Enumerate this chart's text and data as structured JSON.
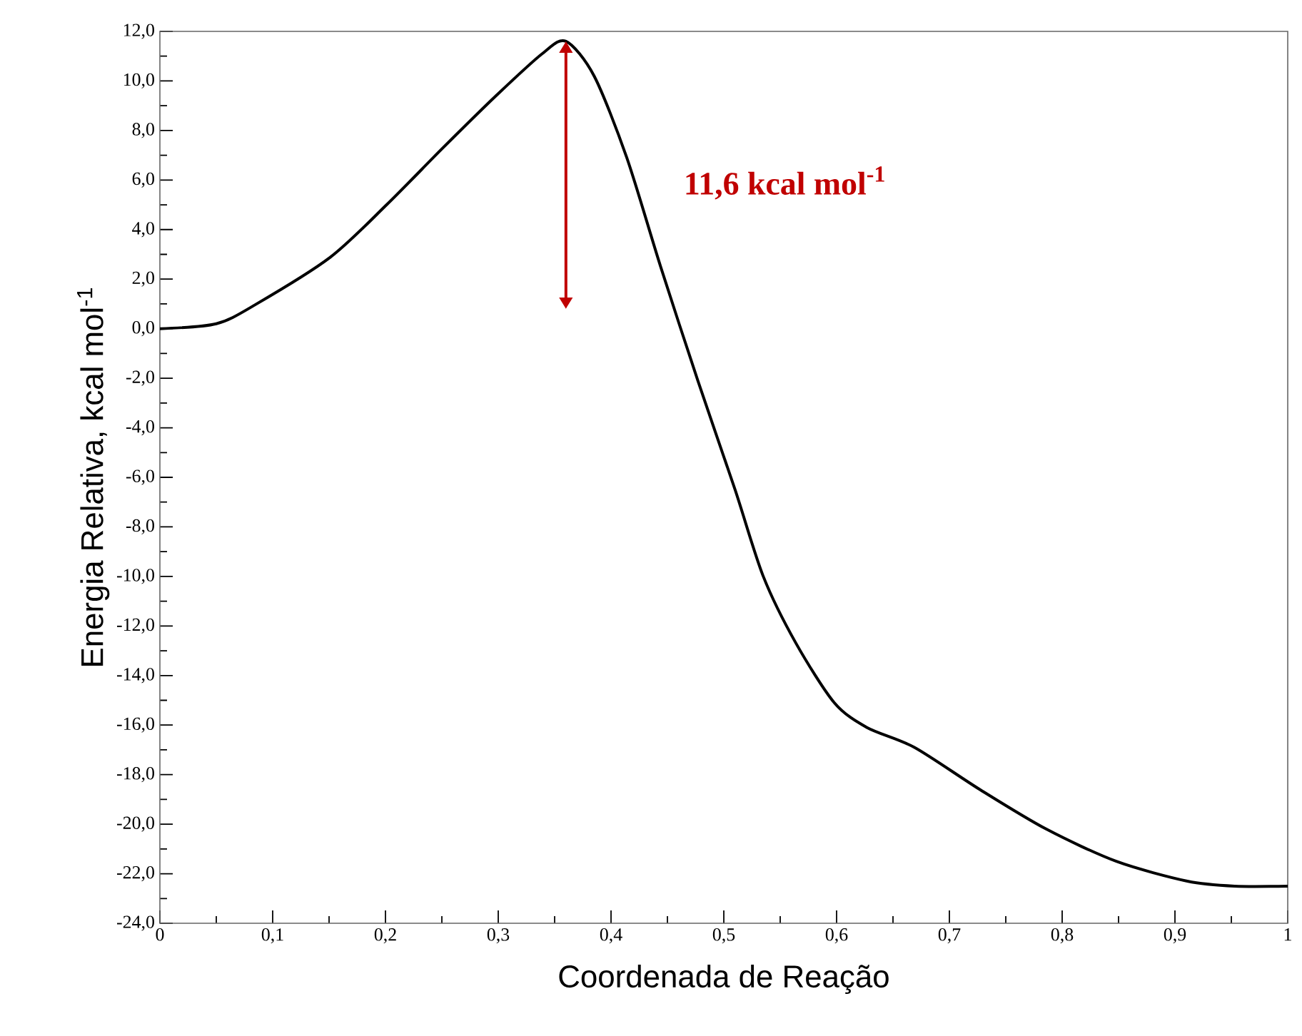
{
  "chart_data": {
    "type": "line",
    "xlabel": "Coordenada de Reação",
    "ylabel": "Energia Relativa, kcal mol$^{-1}$",
    "x": [
      0,
      0.05,
      0.085,
      0.151,
      0.201,
      0.251,
      0.298,
      0.339,
      0.36,
      0.385,
      0.414,
      0.444,
      0.477,
      0.51,
      0.535,
      0.564,
      0.598,
      0.627,
      0.669,
      0.727,
      0.786,
      0.848,
      0.911,
      0.953,
      1.0
    ],
    "series": [
      {
        "color": "#000000",
        "values": [
          0.0,
          0.2,
          0.98,
          2.88,
          5.0,
          7.3,
          9.4,
          11.1,
          11.6,
          10.2,
          6.9,
          2.5,
          -2.1,
          -6.5,
          -10.0,
          -12.7,
          -15.1,
          -16.1,
          -16.9,
          -18.6,
          -20.2,
          -21.5,
          -22.3,
          -22.5,
          -22.5
        ]
      }
    ],
    "annotations": [
      "11,6 kcal mol$^{-1}$"
    ],
    "xlim": [
      0,
      1
    ],
    "ylim": [
      -24,
      12
    ],
    "xticks": [
      {
        "value": 0,
        "label": "0"
      },
      {
        "value": 0.1,
        "label": "0,1"
      },
      {
        "value": 0.2,
        "label": "0,2"
      },
      {
        "value": 0.3,
        "label": "0,3"
      },
      {
        "value": 0.4,
        "label": "0,4"
      },
      {
        "value": 0.5,
        "label": "0,5"
      },
      {
        "value": 0.6,
        "label": "0,6"
      },
      {
        "value": 0.7,
        "label": "0,7"
      },
      {
        "value": 0.8,
        "label": "0,8"
      },
      {
        "value": 0.9,
        "label": "0,9"
      },
      {
        "value": 1,
        "label": "1"
      }
    ],
    "yticks": [
      {
        "value": -24,
        "label": "-24,0"
      },
      {
        "value": -22,
        "label": "-22,0"
      },
      {
        "value": -20,
        "label": "-20,0"
      },
      {
        "value": -18,
        "label": "-18,0"
      },
      {
        "value": -16,
        "label": "-16,0"
      },
      {
        "value": -14,
        "label": "-14,0"
      },
      {
        "value": -12,
        "label": "-12,0"
      },
      {
        "value": -10,
        "label": "-10,0"
      },
      {
        "value": -8,
        "label": "-8,0"
      },
      {
        "value": -6,
        "label": "-6,0"
      },
      {
        "value": -4,
        "label": "-4,0"
      },
      {
        "value": -2,
        "label": "-2,0"
      },
      {
        "value": 0,
        "label": "0,0"
      },
      {
        "value": 2,
        "label": "2,0"
      },
      {
        "value": 4,
        "label": "4,0"
      },
      {
        "value": 6,
        "label": "6,0"
      },
      {
        "value": 8,
        "label": "8,0"
      },
      {
        "value": 10,
        "label": "10,0"
      },
      {
        "value": 12,
        "label": "12,0"
      }
    ],
    "marker": "none",
    "line_style": "solid"
  }
}
